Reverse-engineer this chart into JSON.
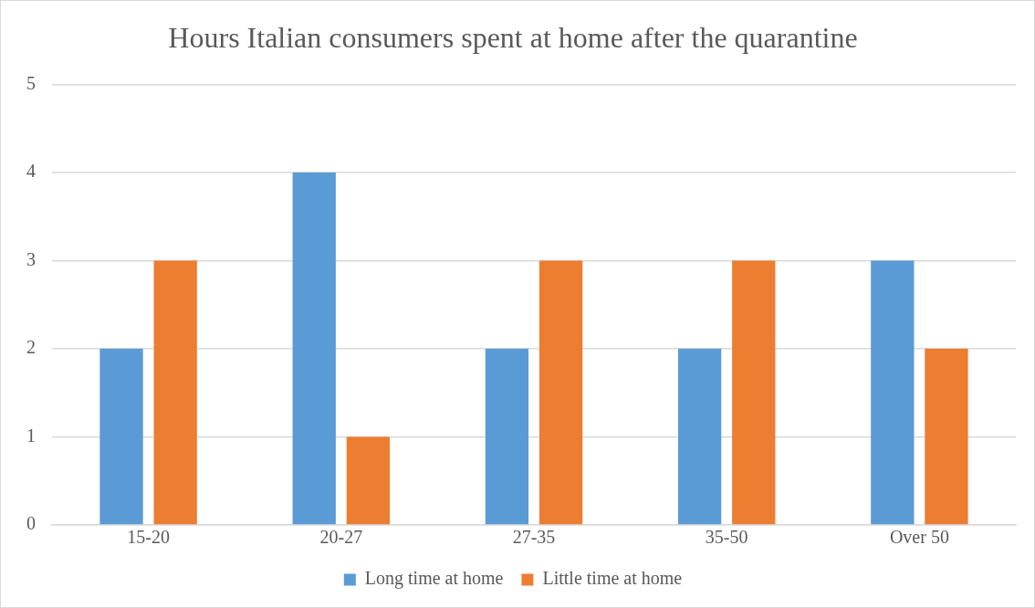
{
  "chart_data": {
    "type": "bar",
    "title": "Hours Italian consumers spent at home after the quarantine",
    "categories": [
      "15-20",
      "20-27",
      "27-35",
      "35-50",
      "Over 50"
    ],
    "series": [
      {
        "name": "Long time at home",
        "color": "#5b9bd5",
        "values": [
          2,
          4,
          2,
          2,
          3
        ]
      },
      {
        "name": "Little time at home",
        "color": "#ed7d31",
        "values": [
          3,
          1,
          3,
          3,
          2
        ]
      }
    ],
    "ylim": [
      0,
      5
    ],
    "yticks": [
      0,
      1,
      2,
      3,
      4,
      5
    ],
    "grid": "y",
    "legend": "bottom"
  }
}
